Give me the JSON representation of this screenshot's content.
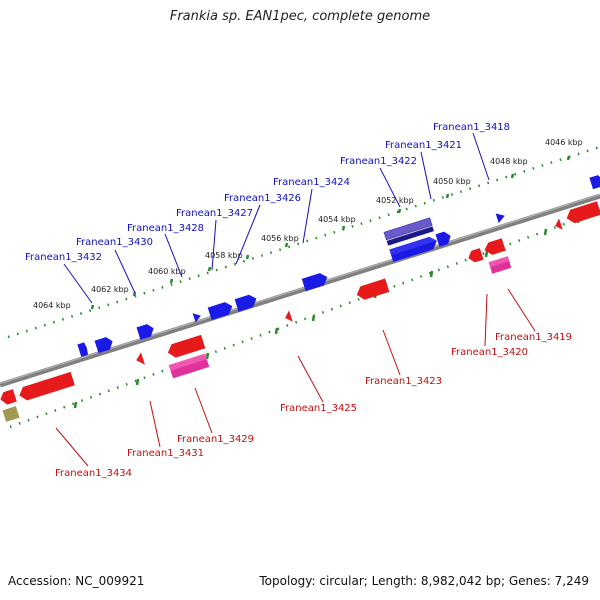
{
  "title": "Frankia sp. EAN1pec, complete genome",
  "accession": "Accession: NC_009921",
  "topology": "Topology: circular; Length: 8,982,042 bp; Genes: 7,249",
  "colors": {
    "forward": "#1a1ae6",
    "reverse": "#e61a1a",
    "pink": "#e0309a",
    "dark_blue": "#1a1a8a",
    "olive": "#a09a50",
    "axis": "#808080",
    "ruler": "#2a8a2a"
  },
  "scale_labels": [
    "4046 kbp",
    "4048 kbp",
    "4050 kbp",
    "4052 kbp",
    "4054 kbp",
    "4056 kbp",
    "4058 kbp",
    "4060 kbp",
    "4062 kbp",
    "4064 kbp"
  ],
  "top_labels": [
    "Franean1_3418",
    "Franean1_3421",
    "Franean1_3422",
    "Franean1_3424",
    "Franean1_3426",
    "Franean1_3427",
    "Franean1_3428",
    "Franean1_3430",
    "Franean1_3432"
  ],
  "bottom_labels": [
    "Franean1_3419",
    "Franean1_3420",
    "Franean1_3423",
    "Franean1_3425",
    "Franean1_3429",
    "Franean1_3431",
    "Franean1_3434"
  ]
}
